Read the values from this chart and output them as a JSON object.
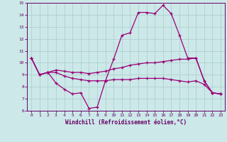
{
  "xlabel": "Windchill (Refroidissement éolien,°C)",
  "background_color": "#cce8e8",
  "grid_color": "#aacccc",
  "line_color": "#990077",
  "xlim": [
    -0.5,
    23.5
  ],
  "ylim": [
    6,
    15
  ],
  "yticks": [
    6,
    7,
    8,
    9,
    10,
    11,
    12,
    13,
    14,
    15
  ],
  "xticks": [
    0,
    1,
    2,
    3,
    4,
    5,
    6,
    7,
    8,
    9,
    10,
    11,
    12,
    13,
    14,
    15,
    16,
    17,
    18,
    19,
    20,
    21,
    22,
    23
  ],
  "line1_x": [
    0,
    1,
    2,
    3,
    4,
    5,
    6,
    7,
    8,
    9,
    10,
    11,
    12,
    13,
    14,
    15,
    16,
    17,
    18,
    19,
    20,
    21,
    22,
    23
  ],
  "line1_y": [
    10.4,
    9.0,
    9.2,
    8.3,
    7.8,
    7.4,
    7.5,
    6.2,
    6.3,
    8.5,
    10.3,
    12.3,
    12.5,
    14.2,
    14.2,
    14.1,
    14.8,
    14.1,
    12.3,
    10.4,
    10.4,
    8.5,
    7.5,
    7.4
  ],
  "line2_x": [
    0,
    1,
    2,
    3,
    4,
    5,
    6,
    7,
    8,
    9,
    10,
    11,
    12,
    13,
    14,
    15,
    16,
    17,
    18,
    19,
    20,
    21,
    22,
    23
  ],
  "line2_y": [
    10.4,
    9.0,
    9.2,
    9.4,
    9.3,
    9.2,
    9.2,
    9.1,
    9.2,
    9.3,
    9.5,
    9.6,
    9.8,
    9.9,
    10.0,
    10.0,
    10.1,
    10.2,
    10.3,
    10.3,
    10.4,
    8.5,
    7.5,
    7.4
  ],
  "line3_x": [
    0,
    1,
    2,
    3,
    4,
    5,
    6,
    7,
    8,
    9,
    10,
    11,
    12,
    13,
    14,
    15,
    16,
    17,
    18,
    19,
    20,
    21,
    22,
    23
  ],
  "line3_y": [
    10.4,
    9.0,
    9.2,
    9.2,
    8.9,
    8.7,
    8.6,
    8.5,
    8.5,
    8.5,
    8.6,
    8.6,
    8.6,
    8.7,
    8.7,
    8.7,
    8.7,
    8.6,
    8.5,
    8.4,
    8.5,
    8.2,
    7.5,
    7.4
  ]
}
